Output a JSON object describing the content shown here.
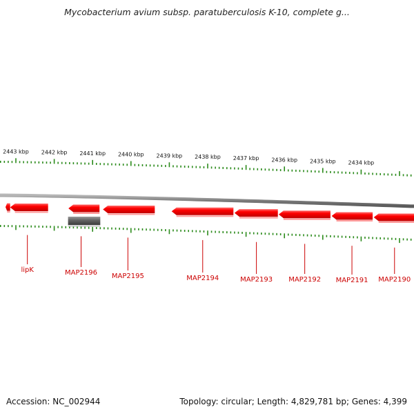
{
  "title": "Mycobacterium avium subsp. paratuberculosis K-10, complete g...",
  "footer": {
    "accession": "Accession: NC_002944",
    "topology": "Topology: circular; Length: 4,829,781 bp; Genes: 4,399"
  },
  "colors": {
    "gene_fill": "#ff0000",
    "gene_dark": "#c80000",
    "gene_highlight": "#ff7070",
    "pseudo_gene": "#666666",
    "tick": "#2a8a1a",
    "backbone": "#8a8a8a",
    "label": "#cc0000"
  },
  "kbp_ticks": [
    {
      "label": "2443 kbp",
      "kbp": 2443
    },
    {
      "label": "2442 kbp",
      "kbp": 2442
    },
    {
      "label": "2441 kbp",
      "kbp": 2441
    },
    {
      "label": "2440 kbp",
      "kbp": 2440
    },
    {
      "label": "2439 kbp",
      "kbp": 2439
    },
    {
      "label": "2438 kbp",
      "kbp": 2438
    },
    {
      "label": "2437 kbp",
      "kbp": 2437
    },
    {
      "label": "2436 kbp",
      "kbp": 2436
    },
    {
      "label": "2435 kbp",
      "kbp": 2435
    },
    {
      "label": "2434 kbp",
      "kbp": 2434
    }
  ],
  "genes": [
    {
      "name": "",
      "start_kbp": 2443.27,
      "end_kbp": 2443.15,
      "strand": "reverse",
      "labeled": false
    },
    {
      "name": "",
      "start_kbp": 2443.15,
      "end_kbp": 2442.16,
      "strand": "reverse",
      "labeled": false
    },
    {
      "name": "",
      "start_kbp": 2441.63,
      "end_kbp": 2440.82,
      "strand": "reverse",
      "labeled": false
    },
    {
      "name": "",
      "start_kbp": 2440.73,
      "end_kbp": 2439.38,
      "strand": "reverse",
      "labeled": false
    },
    {
      "name": "",
      "start_kbp": 2438.94,
      "end_kbp": 2437.33,
      "strand": "reverse",
      "labeled": false
    },
    {
      "name": "",
      "start_kbp": 2437.3,
      "end_kbp": 2436.17,
      "strand": "reverse",
      "labeled": false
    },
    {
      "name": "",
      "start_kbp": 2436.15,
      "end_kbp": 2434.8,
      "strand": "reverse",
      "labeled": false
    },
    {
      "name": "",
      "start_kbp": 2434.77,
      "end_kbp": 2433.7,
      "strand": "reverse",
      "labeled": false
    },
    {
      "name": "",
      "start_kbp": 2433.67,
      "end_kbp": 2432.6,
      "strand": "reverse",
      "labeled": false
    }
  ],
  "pseudo_genes": [
    {
      "start_kbp": 2441.64,
      "end_kbp": 2440.8
    }
  ],
  "gene_labels": [
    {
      "name": "lipK",
      "kbp": 2442.7
    },
    {
      "name": "MAP2196",
      "kbp": 2441.3
    },
    {
      "name": "MAP2195",
      "kbp": 2440.08
    },
    {
      "name": "MAP2194",
      "kbp": 2438.13
    },
    {
      "name": "MAP2193",
      "kbp": 2436.73
    },
    {
      "name": "MAP2192",
      "kbp": 2435.47
    },
    {
      "name": "MAP2191",
      "kbp": 2434.24
    },
    {
      "name": "MAP2190",
      "kbp": 2433.13
    }
  ]
}
